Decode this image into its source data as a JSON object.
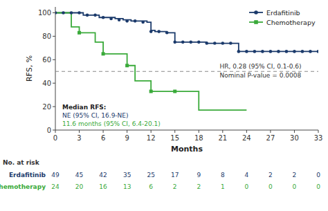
{
  "chart_data": {
    "type": "line",
    "xlabel": "Months",
    "ylabel": "RFS, %",
    "xlim": [
      0,
      33
    ],
    "ylim": [
      0,
      105
    ],
    "xticks": [
      0,
      3,
      6,
      9,
      12,
      15,
      18,
      21,
      24,
      27,
      30,
      33
    ],
    "yticks": [
      0,
      20,
      40,
      60,
      80,
      100
    ],
    "grid": false,
    "legend": "top-right",
    "reference_line": 50,
    "series": [
      {
        "name": "Erdafitinib",
        "type": "line",
        "line_style": "step",
        "marker": "circle",
        "color": "#1b3a6b",
        "x": [
          0,
          0.5,
          1.5,
          2.5,
          3.5,
          4.5,
          5.5,
          6.5,
          7.5,
          8.5,
          9.5,
          10.5,
          11.5,
          12.0,
          12.5,
          13.0,
          13.5,
          14.0,
          15.0,
          16.0,
          17.0,
          18.0,
          19.0,
          20.0,
          21.0,
          22.0,
          23.0,
          24.0,
          25.0,
          26.0,
          27.0,
          28.0,
          29.0,
          30.0,
          31.0,
          32.0,
          33.0
        ],
        "values": [
          100,
          100,
          100,
          100,
          98,
          98,
          96,
          96,
          95,
          94,
          93,
          93,
          92,
          85,
          84,
          84,
          84,
          83,
          75,
          75,
          75,
          75,
          74,
          74,
          74,
          74,
          67,
          67,
          67,
          67,
          67,
          67,
          67,
          67,
          67,
          67,
          67
        ]
      },
      {
        "name": "Chemotherapy",
        "type": "line",
        "line_style": "step",
        "marker": "square",
        "color": "#3aaa3a",
        "x": [
          0,
          1,
          2,
          3,
          4,
          5,
          6,
          7,
          8,
          9,
          10,
          11,
          12,
          13,
          14,
          15,
          16,
          17,
          18,
          19,
          20,
          21,
          22,
          23,
          24
        ],
        "values": [
          100,
          100,
          88,
          83,
          83,
          75,
          65,
          65,
          65,
          55,
          42,
          42,
          33,
          33,
          33,
          33,
          33,
          33,
          17,
          17,
          17,
          17,
          17,
          17,
          17
        ]
      },
      {
        "type": "scatter",
        "marker": "circle",
        "color": "#1b3a6b",
        "x": [
          0,
          1,
          2,
          3,
          4,
          5,
          6,
          7,
          8,
          9,
          10,
          11,
          12,
          13,
          14,
          15,
          16,
          17,
          18,
          19,
          20,
          21,
          22,
          23,
          24,
          25,
          26,
          27,
          28,
          29,
          30,
          31,
          32,
          33
        ],
        "values": [
          100,
          100,
          100,
          100,
          98,
          98,
          96,
          95,
          94,
          93,
          93,
          92,
          84,
          84,
          83,
          75,
          75,
          75,
          75,
          74,
          74,
          74,
          74,
          67,
          67,
          67,
          67,
          67,
          67,
          67,
          67,
          67,
          67,
          67
        ]
      },
      {
        "type": "scatter",
        "marker": "square",
        "color": "#3aaa3a",
        "x": [
          3,
          6,
          9,
          12,
          15
        ],
        "values": [
          83,
          65,
          55,
          33,
          33
        ]
      }
    ],
    "stats_text": [
      "HR, 0.28 (95% CI, 0.1-0.6)",
      "Nominal P-value = 0.0008"
    ],
    "median_text": [
      {
        "text": "Median RFS:",
        "color": "#222222"
      },
      {
        "text": "NE (95% CI, 16.9-NE)",
        "color": "#1b3a6b"
      },
      {
        "text": "11.6 months (95% CI, 6.4-20.1)",
        "color": "#3aaa3a"
      }
    ],
    "risk_table": {
      "title": "No. at risk",
      "x": [
        0,
        3,
        6,
        9,
        12,
        15,
        18,
        21,
        24,
        27,
        30,
        33
      ],
      "rows": [
        {
          "name": "Erdafitinib",
          "color": "#1b3a6b",
          "values": [
            49,
            45,
            42,
            35,
            25,
            17,
            9,
            8,
            4,
            2,
            2,
            0
          ]
        },
        {
          "name": "Chemotherapy",
          "color": "#3aaa3a",
          "values": [
            24,
            20,
            16,
            13,
            6,
            2,
            2,
            1,
            0,
            0,
            0,
            0
          ]
        }
      ]
    }
  }
}
